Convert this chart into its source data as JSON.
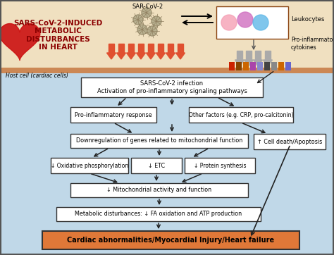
{
  "bg_top": "#f0e0c0",
  "bg_bottom": "#c0d8e8",
  "sep_color": "#cc8855",
  "border_color": "#555555",
  "title_text": "SARS-CoV-2-INDUCED\nMETABOLIC\nDISTURBANCES\nIN HEART",
  "title_color": "#8b0000",
  "host_cell_label": "Host cell (cardiac cells)",
  "box1_text": "SARS-CoV-2 infection\nActivation of pro-inflammatory signaling pathways",
  "box2_text": "Pro-inflammatory response",
  "box3_text": "Other factors (e.g. CRP, pro-calcitonin)",
  "box4_text": "Downregulation of genes related to mitochondrial function",
  "box5_text": "↓ Oxidative phosphorylation",
  "box6_text": "↓ ETC",
  "box7_text": "↓ Protein synthesis",
  "box8_text": "↑ Cell death/Apoptosis",
  "box9_text": "↓ Mitochondrial activity and function",
  "box10_text": "Metabolic disturbances: ↓ FA oxidation and ATP production",
  "box_final_text": "Cardiac abnormalities/Myocardial Injury/Heart failure",
  "box_final_bg": "#e07838",
  "sar_cov2_label": "SAR-CoV-2",
  "leukocytes_label": "Leukocytes",
  "cytokines_label": "Pro-inflammatory\ncytokines",
  "red_arrow_color": "#e05030",
  "gray_arrow_color": "#999999",
  "virus_color": "#b8b090",
  "spike_color": "#908060"
}
